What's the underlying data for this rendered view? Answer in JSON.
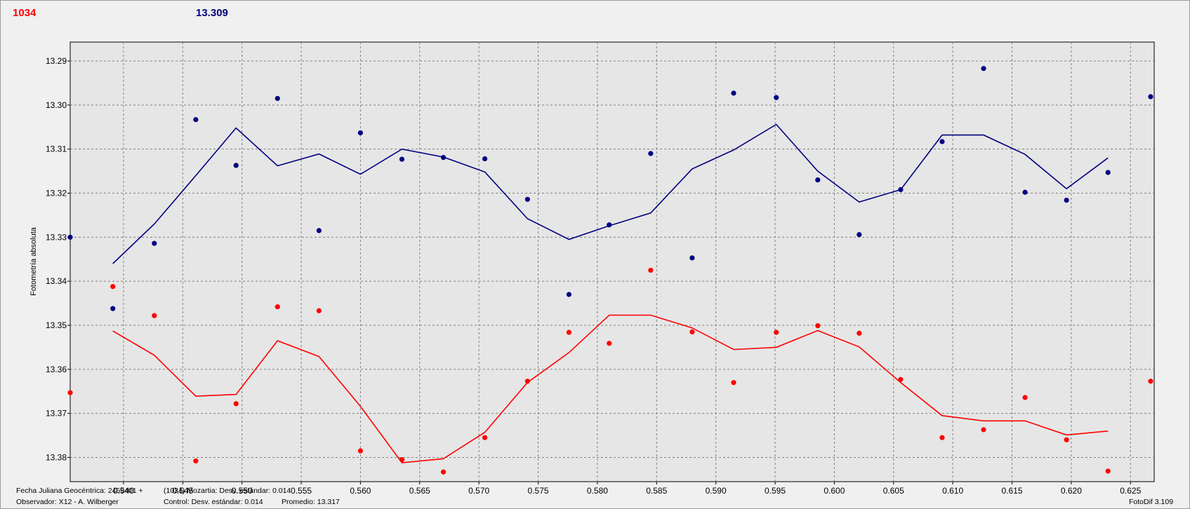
{
  "header": {
    "target_label": "1034",
    "control_label": "13.309",
    "target_color": "#ff0000",
    "control_color": "#000080"
  },
  "footer": {
    "julian_date": "Fecha Juliana Geocéntrica: 2459401 +",
    "observer": "Observador: X12 - A. Wilberger",
    "target_stats": "(1034) Mozartia: Desv. estándar: 0.014",
    "control_stats": "Control: Desv. estándar: 0.014",
    "average": "Promedio: 13.317",
    "software": "FotoDif 3.109"
  },
  "chart_data": {
    "type": "scatter",
    "ylabel": "Fotometría absoluta",
    "xlim": [
      0.5355,
      0.627
    ],
    "ylim": [
      13.2857,
      13.3855
    ],
    "y_inverted": true,
    "grid": true,
    "xticks": [
      "0.540",
      "0.545",
      "0.550",
      "0.555",
      "0.560",
      "0.565",
      "0.570",
      "0.575",
      "0.580",
      "0.585",
      "0.590",
      "0.595",
      "0.600",
      "0.605",
      "0.610",
      "0.615",
      "0.620",
      "0.625"
    ],
    "yticks": [
      "13.29",
      "13.30",
      "13.31",
      "13.32",
      "13.33",
      "13.34",
      "13.35",
      "13.36",
      "13.37",
      "13.38"
    ],
    "series": [
      {
        "color": "#000080",
        "x": [
          0.5355,
          0.5391,
          0.5426,
          0.5461,
          0.5495,
          0.553,
          0.5565,
          0.56,
          0.5635,
          0.567,
          0.5705,
          0.5741,
          0.5776,
          0.581,
          0.5845,
          0.588,
          0.5915,
          0.5951,
          0.5986,
          0.6021,
          0.6056,
          0.6091,
          0.6126,
          0.6161,
          0.6196,
          0.6231,
          0.6267
        ],
        "y": [
          13.33,
          13.3462,
          13.3314,
          13.3033,
          13.3137,
          13.2985,
          13.3285,
          13.3063,
          13.3123,
          13.3119,
          13.3122,
          13.3214,
          13.343,
          13.3272,
          13.311,
          13.3347,
          13.2973,
          13.2983,
          13.317,
          13.3294,
          13.3192,
          13.3083,
          13.2917,
          13.3198,
          13.3216,
          13.3153,
          13.2981
        ],
        "avg_x": [
          0.5391,
          0.5426,
          0.5461,
          0.5495,
          0.553,
          0.5565,
          0.56,
          0.5635,
          0.567,
          0.5705,
          0.5741,
          0.5776,
          0.581,
          0.5845,
          0.588,
          0.5915,
          0.5951,
          0.5986,
          0.6021,
          0.6056,
          0.6091,
          0.6126,
          0.6161,
          0.6196,
          0.6231
        ],
        "avg_y": [
          13.336,
          13.327,
          13.316,
          13.3052,
          13.3138,
          13.3111,
          13.3157,
          13.31,
          13.3118,
          13.3152,
          13.3258,
          13.3305,
          13.3274,
          13.3245,
          13.3145,
          13.3102,
          13.3044,
          13.315,
          13.322,
          13.3192,
          13.3068,
          13.3068,
          13.3112,
          13.319,
          13.312
        ]
      },
      {
        "color": "#ff0000",
        "x": [
          0.5355,
          0.5391,
          0.5426,
          0.5461,
          0.5495,
          0.553,
          0.5565,
          0.56,
          0.5635,
          0.567,
          0.5705,
          0.5741,
          0.5776,
          0.581,
          0.5845,
          0.588,
          0.5915,
          0.5951,
          0.5986,
          0.6021,
          0.6056,
          0.6091,
          0.6126,
          0.6161,
          0.6196,
          0.6231,
          0.6267
        ],
        "y": [
          13.3653,
          13.3412,
          13.3478,
          13.3808,
          13.3678,
          13.3458,
          13.3467,
          13.3785,
          13.3805,
          13.3833,
          13.3755,
          13.3627,
          13.3516,
          13.3541,
          13.3375,
          13.3515,
          13.363,
          13.3516,
          13.3501,
          13.3518,
          13.3623,
          13.3755,
          13.3737,
          13.3664,
          13.376,
          13.3831,
          13.3627
        ],
        "avg_x": [
          0.5391,
          0.5426,
          0.5461,
          0.5495,
          0.553,
          0.5565,
          0.56,
          0.5635,
          0.567,
          0.5705,
          0.5741,
          0.5776,
          0.581,
          0.5845,
          0.588,
          0.5915,
          0.5951,
          0.5986,
          0.6021,
          0.6056,
          0.6091,
          0.6126,
          0.6161,
          0.6196,
          0.6231
        ],
        "avg_y": [
          13.3513,
          13.3568,
          13.3661,
          13.3657,
          13.3535,
          13.3571,
          13.3684,
          13.3812,
          13.3803,
          13.3743,
          13.363,
          13.3562,
          13.3477,
          13.3477,
          13.3506,
          13.3555,
          13.355,
          13.3512,
          13.3549,
          13.363,
          13.3705,
          13.3717,
          13.3717,
          13.3749,
          13.374
        ]
      }
    ]
  }
}
